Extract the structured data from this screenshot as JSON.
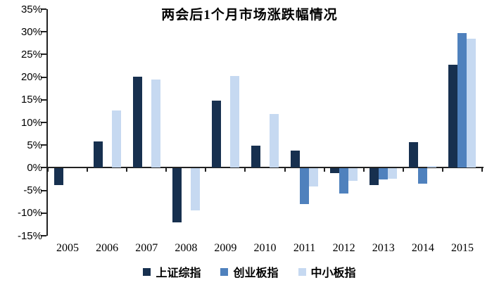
{
  "chart_data": {
    "type": "bar",
    "title": "两会后1个月市场涨跌幅情况",
    "categories": [
      "2005",
      "2006",
      "2007",
      "2008",
      "2009",
      "2010",
      "2011",
      "2012",
      "2013",
      "2014",
      "2015"
    ],
    "series": [
      {
        "name": "上证综指",
        "color": "#17304F",
        "values": [
          -3.6,
          5.8,
          20.1,
          -11.9,
          14.8,
          4.8,
          3.8,
          -1.0,
          -3.7,
          5.6,
          22.7
        ]
      },
      {
        "name": "创业板指",
        "color": "#4F81BD",
        "values": [
          null,
          null,
          null,
          null,
          null,
          null,
          -7.8,
          -5.5,
          -2.5,
          -3.4,
          29.7
        ]
      },
      {
        "name": "中小板指",
        "color": "#C6D9F1",
        "values": [
          null,
          12.7,
          19.5,
          -9.3,
          20.3,
          11.8,
          -3.9,
          -2.8,
          -2.2,
          0.4,
          28.5
        ]
      }
    ],
    "ylim": [
      -15,
      35
    ],
    "ytick_step": 5,
    "ytick_labels": [
      "35%",
      "30%",
      "25%",
      "20%",
      "15%",
      "10%",
      "5%",
      "0%",
      "-5%",
      "-10%",
      "-15%"
    ],
    "xlabel": "",
    "ylabel": "",
    "grid": false,
    "legend_position": "bottom",
    "axis_color": "#222222",
    "background_color": "#FFFFFF"
  }
}
